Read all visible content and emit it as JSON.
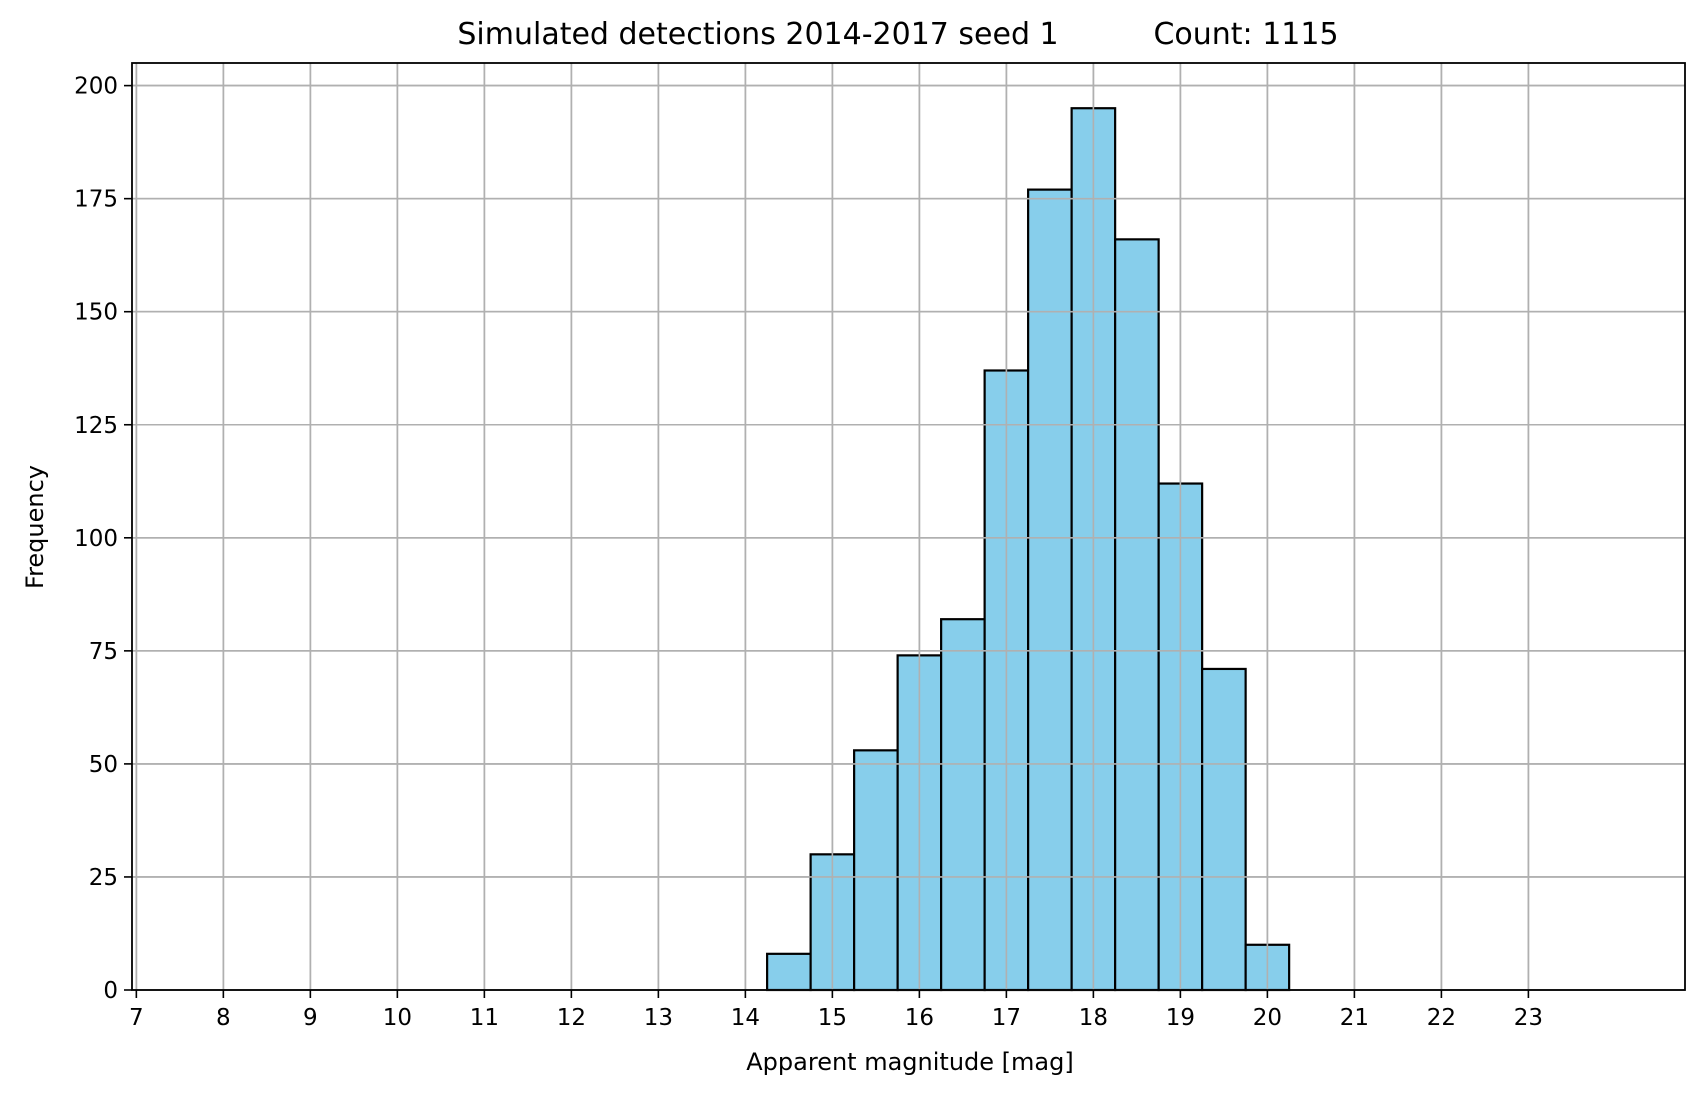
{
  "chart_data": {
    "type": "bar",
    "title": "Simulated detections 2014-2017 seed 1",
    "count_label": "Count: 1115",
    "xlabel": "Apparent magnitude [mag]",
    "ylabel": "Frequency",
    "xlim": [
      6.95,
      24.8
    ],
    "ylim": [
      0,
      205
    ],
    "xticks": [
      7,
      8,
      9,
      10,
      11,
      12,
      13,
      14,
      15,
      16,
      17,
      18,
      19,
      20,
      21,
      22,
      23
    ],
    "yticks": [
      0,
      25,
      50,
      75,
      100,
      125,
      150,
      175,
      200
    ],
    "grid": true,
    "bar_color": "#87ceeb",
    "edge_color": "#000000",
    "bin_width": 0.5,
    "bin_centers": [
      14.5,
      15.0,
      15.5,
      16.0,
      16.5,
      17.0,
      17.5,
      18.0,
      18.5,
      19.0,
      19.5,
      20.0
    ],
    "values": [
      8,
      30,
      53,
      74,
      82,
      137,
      177,
      195,
      166,
      112,
      71,
      10
    ]
  }
}
